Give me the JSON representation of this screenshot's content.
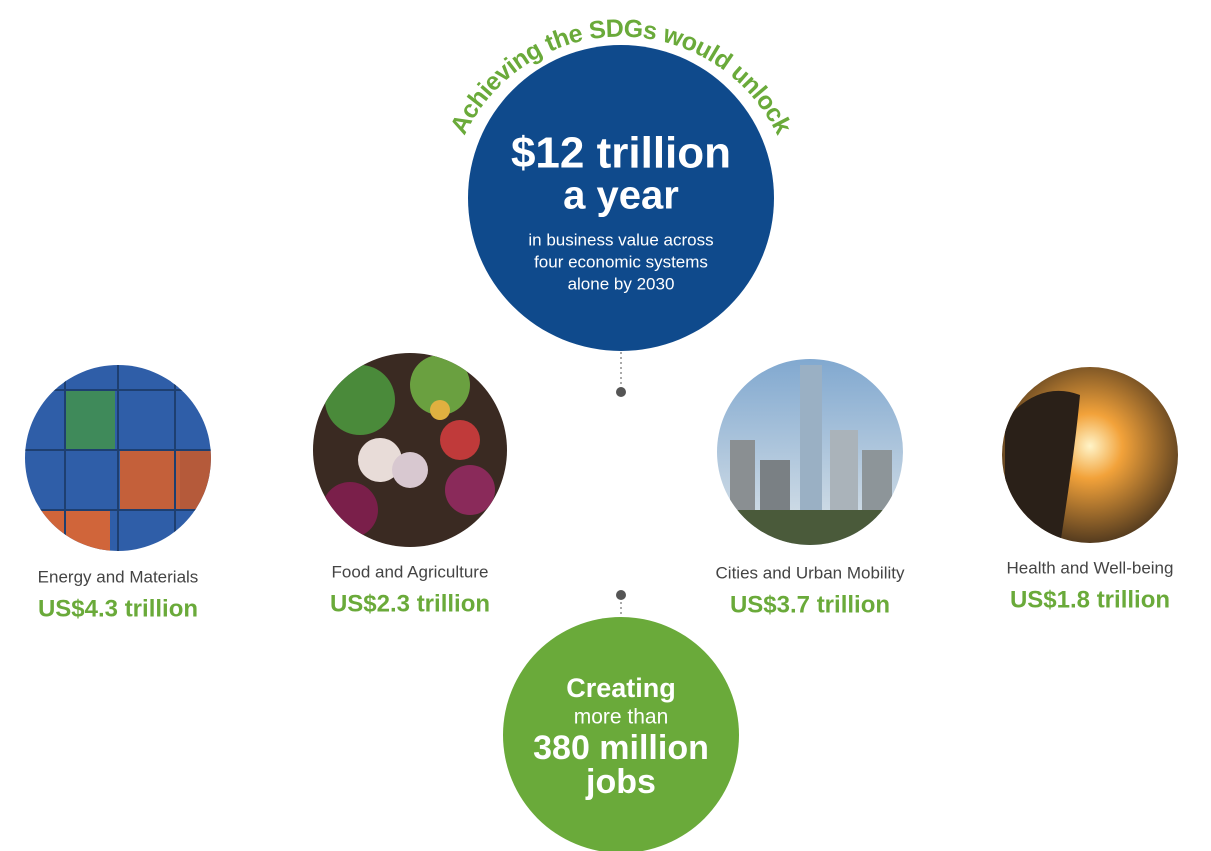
{
  "header": {
    "arc_text": "Achieving the SDGs would unlock"
  },
  "top_circle": {
    "headline": [
      "$12 trillion",
      "a year"
    ],
    "body": [
      "in business value across",
      "four economic systems",
      "alone by 2030"
    ]
  },
  "systems": [
    {
      "label": "Energy and Materials",
      "value": "US$4.3 trillion"
    },
    {
      "label": "Food and Agriculture",
      "value": "US$2.3 trillion"
    },
    {
      "label": "Cities and Urban Mobility",
      "value": "US$3.7 trillion"
    },
    {
      "label": "Health and Well-being",
      "value": "US$1.8 trillion"
    }
  ],
  "bottom_circle": {
    "lines": [
      "Creating",
      "more than",
      "380 million",
      "jobs"
    ]
  }
}
